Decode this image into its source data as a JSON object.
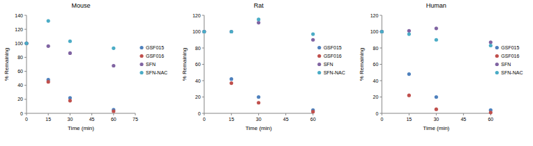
{
  "chart_data": [
    {
      "type": "scatter",
      "title": "Mouse",
      "xlabel": "Time (min)",
      "ylabel": "% Remaining",
      "x": [
        0,
        15,
        30,
        60
      ],
      "xlim": [
        0,
        75
      ],
      "xticks": [
        0,
        15,
        30,
        45,
        60,
        75
      ],
      "ylim": [
        0,
        140
      ],
      "yticks": [
        0,
        20,
        40,
        60,
        80,
        100,
        120,
        140
      ],
      "legend": "right",
      "marker": "circle",
      "series": [
        {
          "name": "GSF015",
          "color": "#4f81bd",
          "values": [
            100,
            48,
            22,
            5
          ]
        },
        {
          "name": "GSF016",
          "color": "#c0504d",
          "values": [
            100,
            45,
            18,
            3
          ]
        },
        {
          "name": "SFN",
          "color": "#8064a2",
          "values": [
            100,
            96,
            86,
            68
          ]
        },
        {
          "name": "SFN-NAC",
          "color": "#4bacc6",
          "values": [
            100,
            132,
            103,
            93
          ]
        }
      ]
    },
    {
      "type": "scatter",
      "title": "Rat",
      "xlabel": "Time (min)",
      "ylabel": "% Remaining",
      "x": [
        0,
        15,
        30,
        60
      ],
      "xlim": [
        0,
        60
      ],
      "xticks": [
        0,
        15,
        30,
        45,
        60
      ],
      "ylim": [
        0,
        120
      ],
      "yticks": [
        0,
        20,
        40,
        60,
        80,
        100,
        120
      ],
      "legend": "right",
      "marker": "circle",
      "series": [
        {
          "name": "GSF015",
          "color": "#4f81bd",
          "values": [
            100,
            42,
            20,
            4
          ]
        },
        {
          "name": "GSF016",
          "color": "#c0504d",
          "values": [
            100,
            37,
            13,
            2
          ]
        },
        {
          "name": "SFN",
          "color": "#8064a2",
          "values": [
            100,
            100,
            111,
            90
          ]
        },
        {
          "name": "SFN-NAC",
          "color": "#4bacc6",
          "values": [
            100,
            100,
            115,
            97
          ]
        }
      ]
    },
    {
      "type": "scatter",
      "title": "Human",
      "xlabel": "Time (min)",
      "ylabel": "% Remaining",
      "x": [
        0,
        15,
        30,
        60
      ],
      "xlim": [
        0,
        60
      ],
      "xticks": [
        0,
        15,
        30,
        45,
        60
      ],
      "ylim": [
        0,
        120
      ],
      "yticks": [
        0,
        20,
        40,
        60,
        80,
        100,
        120
      ],
      "legend": "right",
      "marker": "circle",
      "series": [
        {
          "name": "GSF015",
          "color": "#4f81bd",
          "values": [
            100,
            48,
            20,
            4
          ]
        },
        {
          "name": "GSF016",
          "color": "#c0504d",
          "values": [
            100,
            22,
            5,
            1
          ]
        },
        {
          "name": "SFN",
          "color": "#8064a2",
          "values": [
            100,
            101,
            104,
            87
          ]
        },
        {
          "name": "SFN-NAC",
          "color": "#4bacc6",
          "values": [
            100,
            97,
            90,
            83
          ]
        }
      ]
    }
  ]
}
